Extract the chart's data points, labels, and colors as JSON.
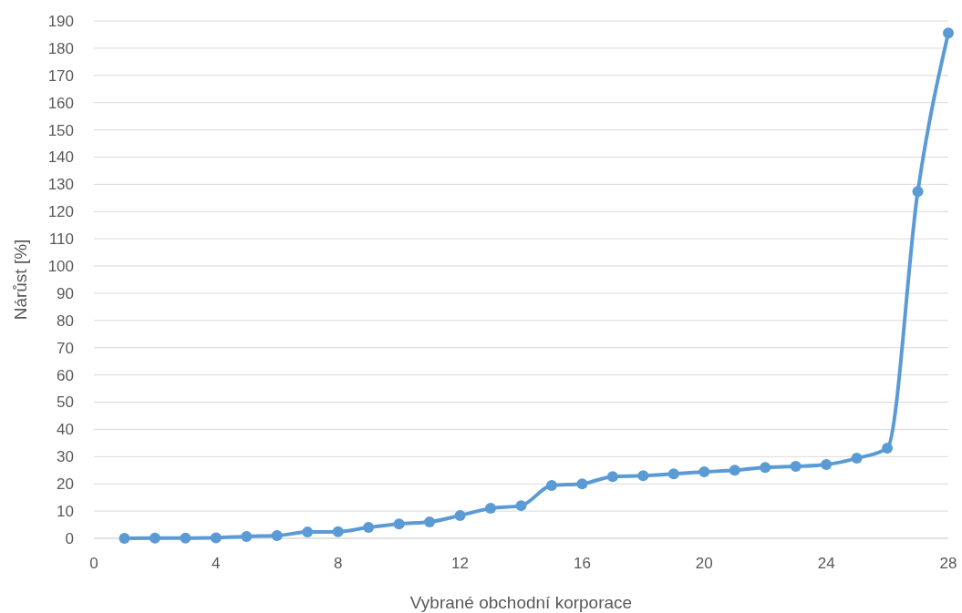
{
  "chart_data": {
    "type": "line",
    "xlabel": "Vybrané obchodní korporace",
    "ylabel": "Nárůst [%]",
    "x": [
      1,
      2,
      3,
      4,
      5,
      6,
      7,
      8,
      9,
      10,
      11,
      12,
      13,
      14,
      15,
      16,
      17,
      18,
      19,
      20,
      21,
      22,
      23,
      24,
      25,
      26,
      27,
      28
    ],
    "series": [
      {
        "color": "#5b9bd5",
        "values": [
          0,
          0.1,
          0.1,
          0.2,
          0.7,
          1,
          2.3,
          2.4,
          4,
          5.3,
          6,
          8.4,
          11,
          12,
          19.4,
          20,
          22.7,
          23,
          23.7,
          24.4,
          25,
          26,
          26.4,
          27.1,
          29.4,
          33.1,
          127.4,
          185.6
        ]
      }
    ],
    "xlim": [
      0,
      28
    ],
    "xticks": [
      0,
      4,
      8,
      12,
      16,
      20,
      24,
      28
    ],
    "ylim": [
      0,
      190
    ],
    "yticks": [
      0,
      10,
      20,
      30,
      40,
      50,
      60,
      70,
      80,
      90,
      100,
      110,
      120,
      130,
      140,
      150,
      160,
      170,
      180,
      190
    ],
    "grid": "y",
    "marker": "circle",
    "line_style": "solid"
  }
}
